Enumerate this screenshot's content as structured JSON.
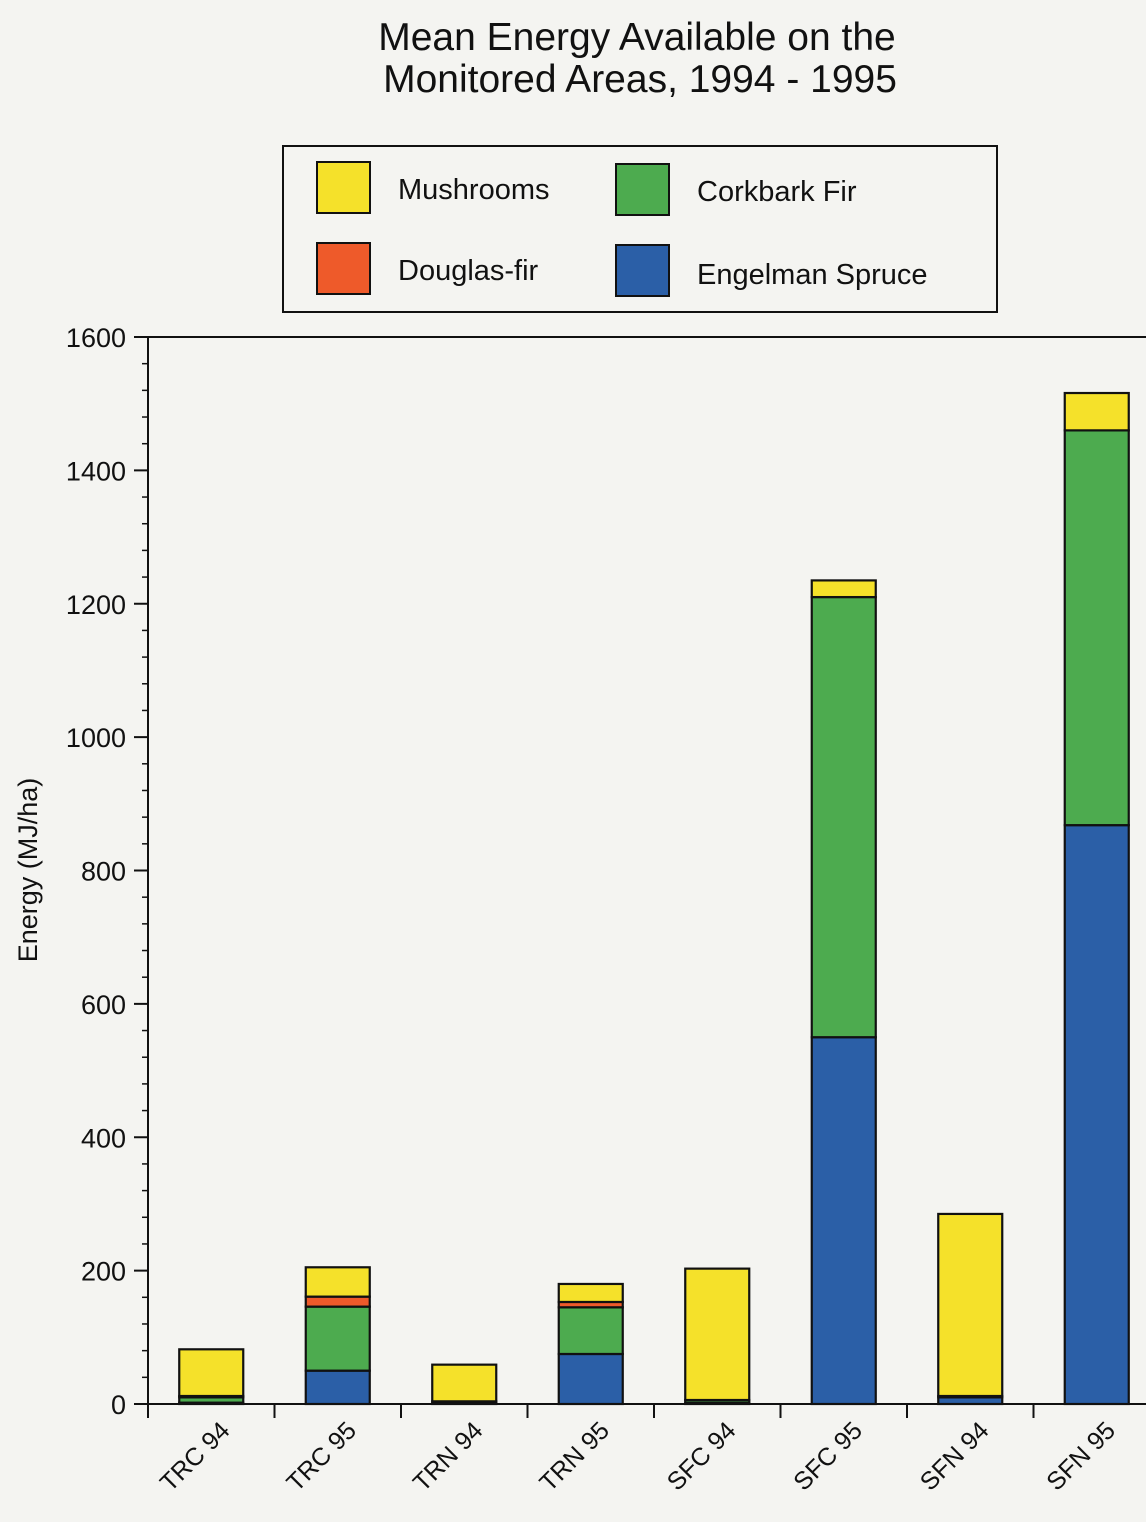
{
  "colors": {
    "mushrooms": "#f5e12a",
    "douglas_fir": "#ee5a2a",
    "corkbark_fir": "#4dab4f",
    "engelman_spruce": "#2b5fa7",
    "axis": "#111111",
    "background": "#f4f4f1"
  },
  "chart_data": {
    "type": "bar",
    "stacked": true,
    "title_lines": [
      "Mean Energy Available on the",
      "Monitored Areas, 1994 - 1995"
    ],
    "xlabel": "",
    "ylabel": "Energy (MJ/ha)",
    "ylim": [
      0,
      1600
    ],
    "yticks": [
      0,
      200,
      400,
      600,
      800,
      1000,
      1200,
      1400,
      1600
    ],
    "ytick_labels": [
      "0",
      "200",
      "400",
      "600",
      "800",
      "1000",
      "1200",
      "1400",
      "1600"
    ],
    "categories": [
      "TRC 94",
      "TRC 95",
      "TRN 94",
      "TRN 95",
      "SFC 94",
      "SFC 95",
      "SFN 94",
      "SFN 95"
    ],
    "legend_position": "top",
    "series": [
      {
        "name": "Engelman Spruce",
        "color_key": "engelman_spruce",
        "values": [
          2,
          50,
          1,
          75,
          2,
          550,
          10,
          868
        ]
      },
      {
        "name": "Corkbark Fir",
        "color_key": "corkbark_fir",
        "values": [
          8,
          96,
          3,
          70,
          4,
          660,
          2,
          592
        ]
      },
      {
        "name": "Douglas-fir",
        "color_key": "douglas_fir",
        "values": [
          2,
          15,
          0,
          8,
          0,
          0,
          0,
          0
        ]
      },
      {
        "name": "Mushrooms",
        "color_key": "mushrooms",
        "values": [
          70,
          44,
          55,
          27,
          197,
          25,
          273,
          56
        ]
      }
    ],
    "legend_order": [
      "Mushrooms",
      "Corkbark Fir",
      "Douglas-fir",
      "Engelman Spruce"
    ]
  }
}
